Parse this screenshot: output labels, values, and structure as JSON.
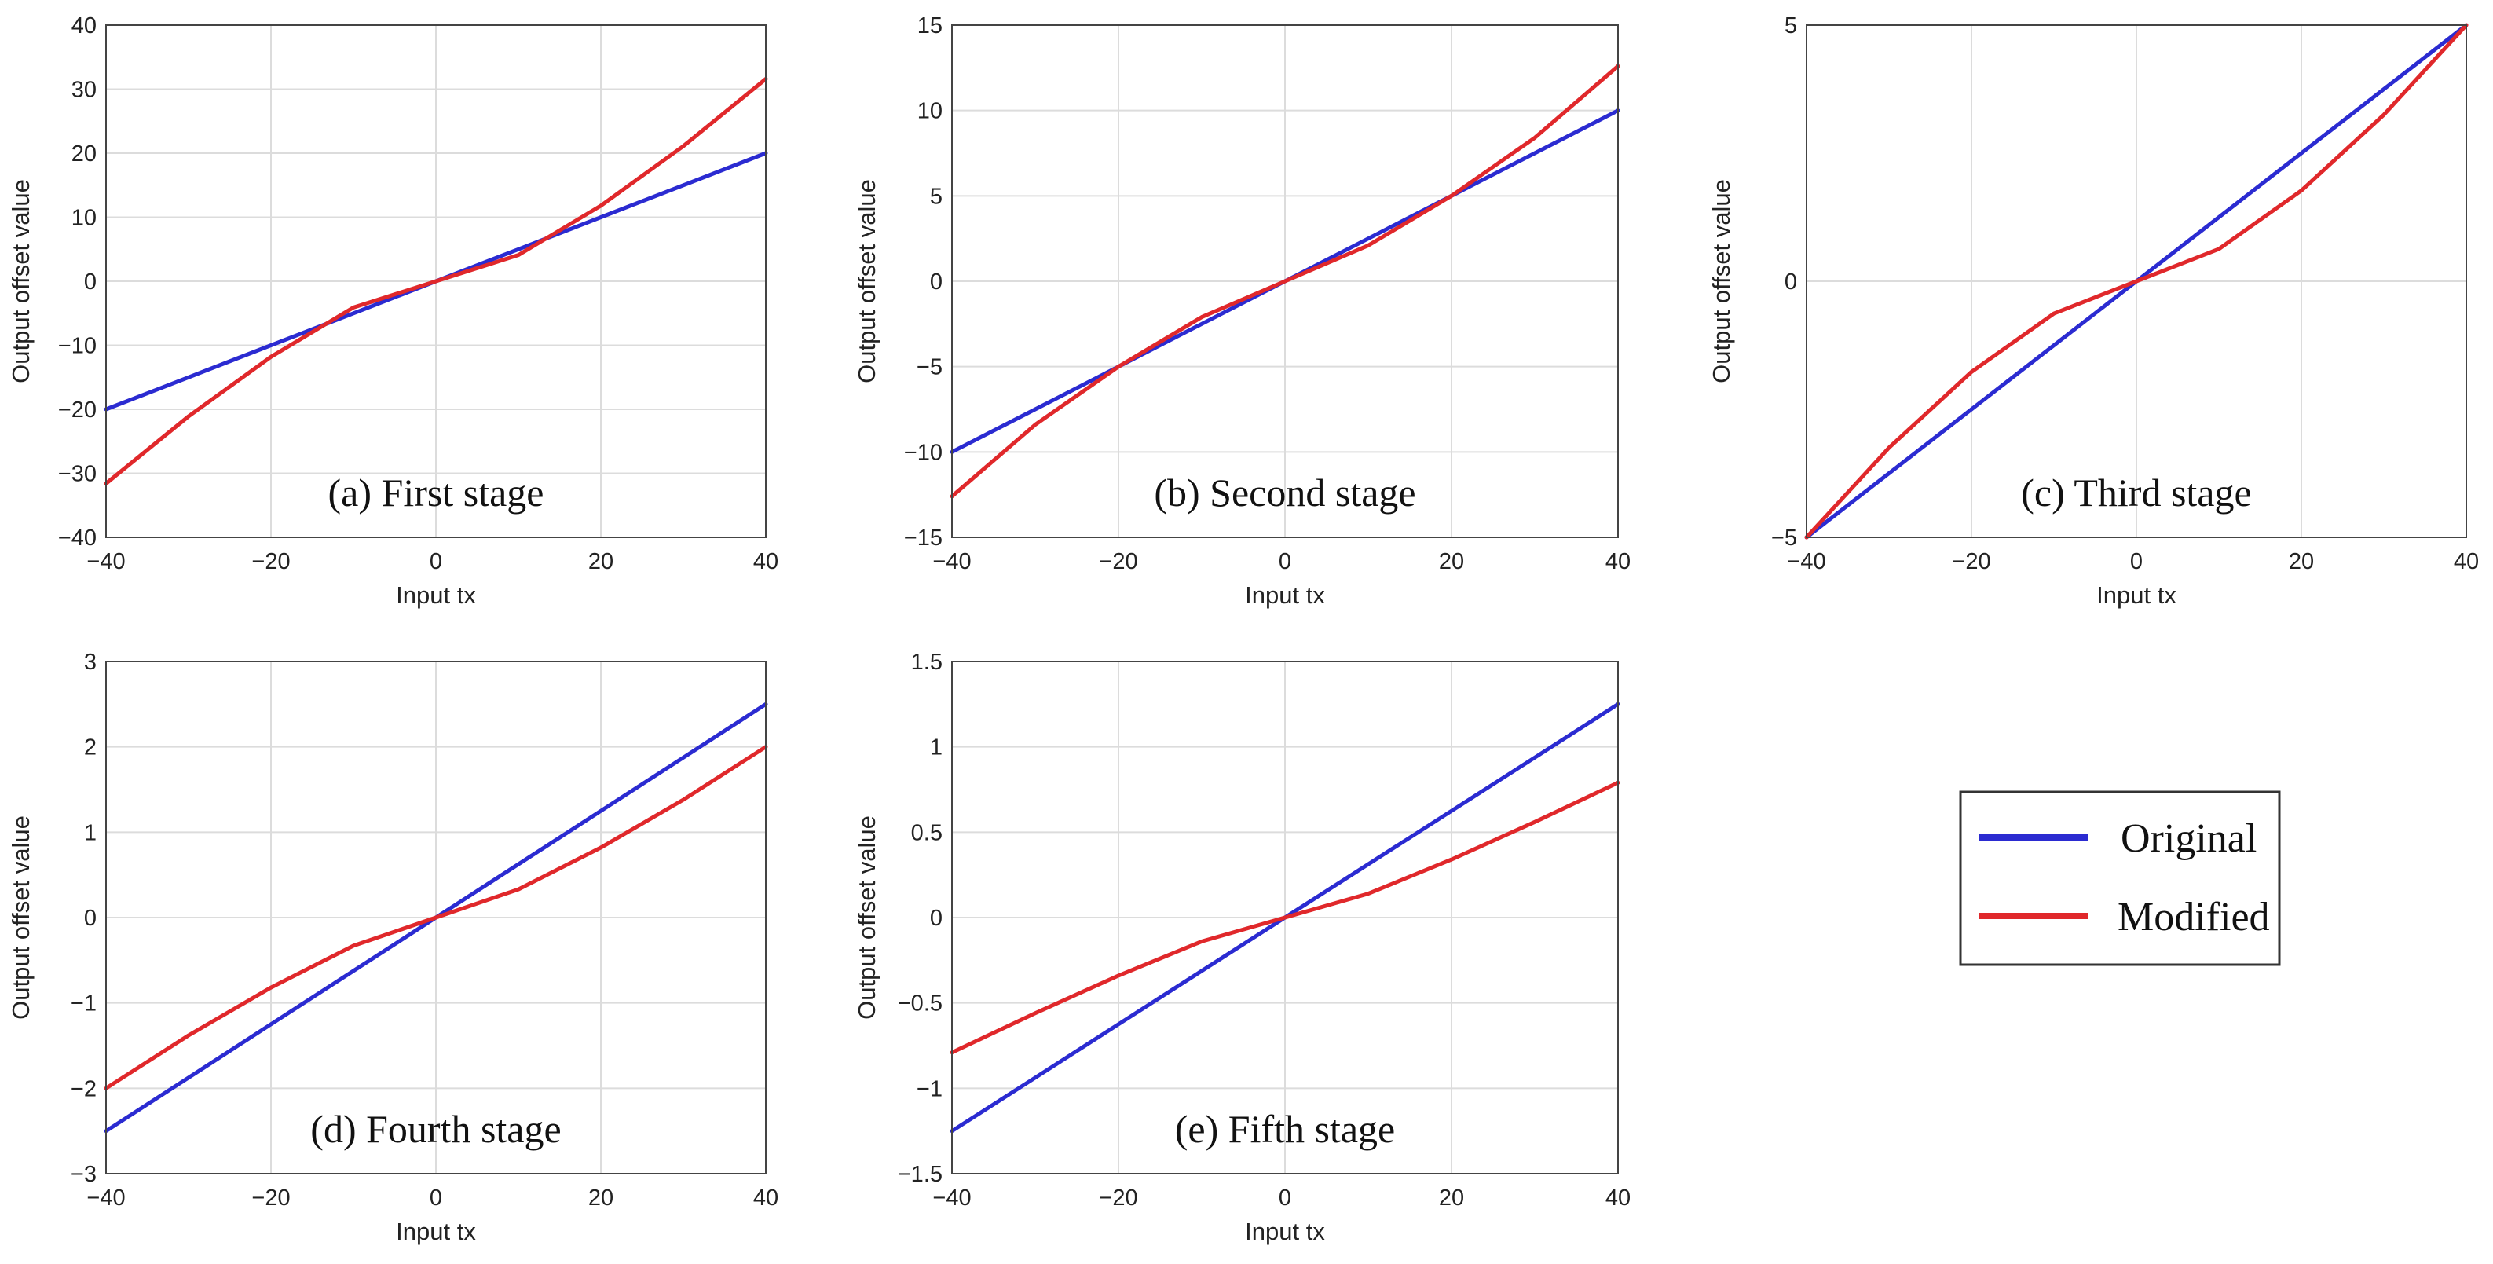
{
  "figure_caption": "",
  "chart_data": [
    {
      "type": "line",
      "panel_caption": "(a) First stage",
      "xlabel": "Input tx",
      "ylabel": "Output offset value",
      "xlim": [
        -40,
        40
      ],
      "ylim": [
        -40,
        40
      ],
      "xticks": [
        -40,
        -20,
        0,
        20,
        40
      ],
      "yticks": [
        -40,
        -30,
        -20,
        -10,
        0,
        10,
        20,
        30,
        40
      ],
      "xtick_labels": [
        "−40",
        "−20",
        "0",
        "20",
        "40"
      ],
      "ytick_labels": [
        "−40",
        "−30",
        "−20",
        "−10",
        "0",
        "10",
        "20",
        "30",
        "40"
      ],
      "grid": true,
      "series": [
        {
          "name": "Original",
          "color": "#2b2bd1",
          "x": [
            -40,
            -30,
            -20,
            -10,
            0,
            10,
            20,
            30,
            40
          ],
          "values": [
            -20,
            -15,
            -10,
            -5,
            0,
            5,
            10,
            15,
            20
          ]
        },
        {
          "name": "Modified",
          "color": "#e0282b",
          "x": [
            -40,
            -30,
            -20,
            -10,
            0,
            10,
            20,
            30,
            40
          ],
          "values": [
            -31.6,
            -21.1,
            -11.8,
            -4.1,
            0,
            4.1,
            11.8,
            21.1,
            31.6
          ]
        }
      ]
    },
    {
      "type": "line",
      "panel_caption": "(b) Second stage",
      "xlabel": "Input tx",
      "ylabel": "Output offset value",
      "xlim": [
        -40,
        40
      ],
      "ylim": [
        -15,
        15
      ],
      "xticks": [
        -40,
        -20,
        0,
        20,
        40
      ],
      "yticks": [
        -15,
        -10,
        -5,
        0,
        5,
        10,
        15
      ],
      "xtick_labels": [
        "−40",
        "−20",
        "0",
        "20",
        "40"
      ],
      "ytick_labels": [
        "−15",
        "−10",
        "−5",
        "0",
        "5",
        "10",
        "15"
      ],
      "grid": true,
      "series": [
        {
          "name": "Original",
          "color": "#2b2bd1",
          "x": [
            -40,
            -30,
            -20,
            -10,
            0,
            10,
            20,
            30,
            40
          ],
          "values": [
            -10,
            -7.5,
            -5,
            -2.5,
            0,
            2.5,
            5,
            7.5,
            10
          ]
        },
        {
          "name": "Modified",
          "color": "#e0282b",
          "x": [
            -40,
            -30,
            -20,
            -10,
            0,
            10,
            20,
            30,
            40
          ],
          "values": [
            -12.6,
            -8.4,
            -5.0,
            -2.1,
            0,
            2.1,
            5.0,
            8.4,
            12.6
          ]
        }
      ]
    },
    {
      "type": "line",
      "panel_caption": "(c) Third stage",
      "xlabel": "Input tx",
      "ylabel": "Output offset value",
      "xlim": [
        -40,
        40
      ],
      "ylim": [
        -5,
        5
      ],
      "xticks": [
        -40,
        -20,
        0,
        20,
        40
      ],
      "yticks": [
        -5,
        0,
        5
      ],
      "xtick_labels": [
        "−40",
        "−20",
        "0",
        "20",
        "40"
      ],
      "ytick_labels": [
        "−5",
        "0",
        "5"
      ],
      "grid": true,
      "series": [
        {
          "name": "Original",
          "color": "#2b2bd1",
          "x": [
            -40,
            -30,
            -20,
            -10,
            0,
            10,
            20,
            30,
            40
          ],
          "values": [
            -5,
            -3.75,
            -2.5,
            -1.25,
            0,
            1.25,
            2.5,
            3.75,
            5
          ]
        },
        {
          "name": "Modified",
          "color": "#e0282b",
          "x": [
            -40,
            -30,
            -20,
            -10,
            0,
            10,
            20,
            30,
            40
          ],
          "values": [
            -5,
            -3.25,
            -1.77,
            -0.63,
            0,
            0.63,
            1.77,
            3.25,
            5
          ]
        }
      ]
    },
    {
      "type": "line",
      "panel_caption": "(d) Fourth stage",
      "xlabel": "Input tx",
      "ylabel": "Output offset value",
      "xlim": [
        -40,
        40
      ],
      "ylim": [
        -3,
        3
      ],
      "xticks": [
        -40,
        -20,
        0,
        20,
        40
      ],
      "yticks": [
        -3,
        -2,
        -1,
        0,
        1,
        2,
        3
      ],
      "xtick_labels": [
        "−40",
        "−20",
        "0",
        "20",
        "40"
      ],
      "ytick_labels": [
        "−3",
        "−2",
        "−1",
        "0",
        "1",
        "2",
        "3"
      ],
      "grid": true,
      "series": [
        {
          "name": "Original",
          "color": "#2b2bd1",
          "x": [
            -40,
            -30,
            -20,
            -10,
            0,
            10,
            20,
            30,
            40
          ],
          "values": [
            -2.5,
            -1.875,
            -1.25,
            -0.625,
            0,
            0.625,
            1.25,
            1.875,
            2.5
          ]
        },
        {
          "name": "Modified",
          "color": "#e0282b",
          "x": [
            -40,
            -30,
            -20,
            -10,
            0,
            10,
            20,
            30,
            40
          ],
          "values": [
            -2.0,
            -1.38,
            -0.82,
            -0.33,
            0,
            0.33,
            0.82,
            1.38,
            2.0
          ]
        }
      ]
    },
    {
      "type": "line",
      "panel_caption": "(e) Fifth stage",
      "xlabel": "Input tx",
      "ylabel": "Output offset value",
      "xlim": [
        -40,
        40
      ],
      "ylim": [
        -1.5,
        1.5
      ],
      "xticks": [
        -40,
        -20,
        0,
        20,
        40
      ],
      "yticks": [
        -1.5,
        -1,
        -0.5,
        0,
        0.5,
        1,
        1.5
      ],
      "xtick_labels": [
        "−40",
        "−20",
        "0",
        "20",
        "40"
      ],
      "ytick_labels": [
        "−1.5",
        "−1",
        "−0.5",
        "0",
        "0.5",
        "1",
        "1.5"
      ],
      "grid": true,
      "series": [
        {
          "name": "Original",
          "color": "#2b2bd1",
          "x": [
            -40,
            -30,
            -20,
            -10,
            0,
            10,
            20,
            30,
            40
          ],
          "values": [
            -1.25,
            -0.9375,
            -0.625,
            -0.3125,
            0,
            0.3125,
            0.625,
            0.9375,
            1.25
          ]
        },
        {
          "name": "Modified",
          "color": "#e0282b",
          "x": [
            -40,
            -30,
            -20,
            -10,
            0,
            10,
            20,
            30,
            40
          ],
          "values": [
            -0.79,
            -0.56,
            -0.34,
            -0.14,
            0,
            0.14,
            0.34,
            0.56,
            0.79
          ]
        }
      ]
    }
  ],
  "legend": {
    "entries": [
      {
        "label": "Original",
        "color": "#2b2bd1"
      },
      {
        "label": "Modified",
        "color": "#e0282b"
      }
    ]
  }
}
